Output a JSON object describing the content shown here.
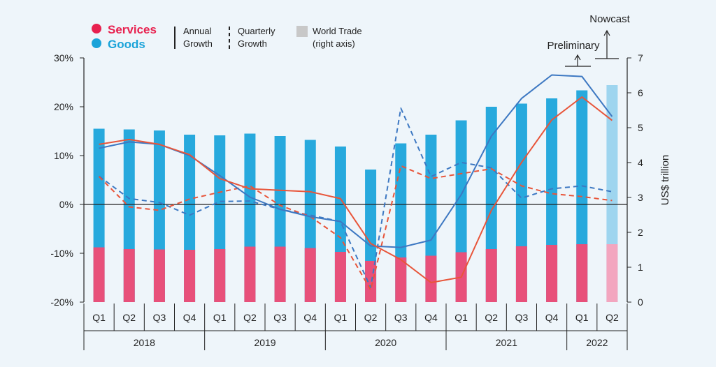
{
  "colors": {
    "background": "#eef5fa",
    "goods": "#27a9dd",
    "goods_nowcast": "#9ed5ef",
    "services": "#e8507a",
    "services_nowcast": "#f3a6bf",
    "goods_line": "#3d78c2",
    "services_line": "#e8553a",
    "axis": "#222222",
    "legend_world_trade": "#c8c8c8"
  },
  "legend": {
    "services": "Services",
    "goods": "Goods",
    "annual_growth": [
      "Annual",
      "Growth"
    ],
    "quarterly_growth": [
      "Quarterly",
      "Growth"
    ],
    "world_trade": [
      "World Trade",
      "(right axis)"
    ]
  },
  "annotations": {
    "nowcast": "Nowcast",
    "preliminary": "Preliminary"
  },
  "chart_data": {
    "type": "bar",
    "quarters": [
      "Q1",
      "Q2",
      "Q3",
      "Q4",
      "Q1",
      "Q2",
      "Q3",
      "Q4",
      "Q1",
      "Q2",
      "Q3",
      "Q4",
      "Q1",
      "Q2",
      "Q3",
      "Q4",
      "Q1",
      "Q2"
    ],
    "years": [
      {
        "label": "2018",
        "quarters": 4
      },
      {
        "label": "2019",
        "quarters": 4
      },
      {
        "label": "2020",
        "quarters": 4
      },
      {
        "label": "2021",
        "quarters": 4
      },
      {
        "label": "2022",
        "quarters": 2
      }
    ],
    "left_axis": {
      "ticks": [
        "30%",
        "20%",
        "10%",
        "0%",
        "-10%",
        "-20%"
      ],
      "range": [
        -20,
        30
      ]
    },
    "right_axis": {
      "label": "US$ trillion",
      "ticks": [
        "7",
        "6",
        "5",
        "4",
        "3",
        "2",
        "1",
        "0"
      ],
      "range": [
        0,
        7
      ]
    },
    "series": [
      {
        "name": "Goods",
        "kind": "bar",
        "axis": "right",
        "values": [
          4.97,
          4.95,
          4.92,
          4.8,
          4.78,
          4.83,
          4.76,
          4.65,
          4.46,
          3.8,
          4.55,
          4.8,
          5.21,
          5.6,
          5.69,
          5.84,
          6.07,
          6.22
        ]
      },
      {
        "name": "Services",
        "kind": "bar",
        "axis": "right",
        "values": [
          1.57,
          1.52,
          1.51,
          1.5,
          1.52,
          1.59,
          1.59,
          1.55,
          1.44,
          1.18,
          1.28,
          1.33,
          1.43,
          1.52,
          1.6,
          1.64,
          1.66,
          1.66
        ]
      },
      {
        "name": "Goods annual growth",
        "kind": "line",
        "style": "solid",
        "axis": "left",
        "values": [
          11.5,
          12.8,
          12.3,
          10.0,
          5.9,
          1.5,
          -1.0,
          -2.5,
          -3.5,
          -8.5,
          -8.8,
          -7.3,
          2.0,
          14.0,
          21.7,
          26.5,
          26.2,
          18.0
        ]
      },
      {
        "name": "Goods quarterly growth",
        "kind": "line",
        "style": "dashed",
        "axis": "left",
        "values": [
          5.8,
          1.2,
          0.4,
          -2.2,
          0.6,
          0.7,
          -1.0,
          -2.2,
          -3.5,
          -17.0,
          19.7,
          5.7,
          8.6,
          7.5,
          1.3,
          3.2,
          3.8,
          2.6
        ]
      },
      {
        "name": "Services annual growth",
        "kind": "line",
        "style": "solid",
        "axis": "left",
        "values": [
          12.3,
          13.3,
          12.3,
          10.2,
          5.3,
          3.2,
          2.9,
          2.6,
          1.2,
          -8.0,
          -11.3,
          -16.0,
          -14.9,
          -1.2,
          8.6,
          17.3,
          22.0,
          17.2
        ]
      },
      {
        "name": "Services quarterly growth",
        "kind": "line",
        "style": "dashed",
        "axis": "left",
        "values": [
          5.7,
          -0.5,
          -1.2,
          1.1,
          2.5,
          3.8,
          -0.2,
          -2.5,
          -6.8,
          -17.5,
          7.9,
          5.3,
          6.3,
          7.3,
          3.8,
          2.2,
          1.6,
          0.8
        ]
      }
    ]
  }
}
